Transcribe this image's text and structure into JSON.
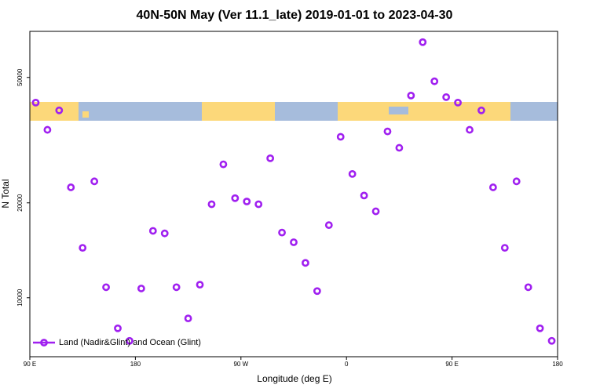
{
  "chart_data": {
    "type": "scatter",
    "title": "40N-50N May (Ver 11.1_late)   2019-01-01 to 2023-04-30",
    "x_label": "Longitude (deg E)",
    "y_label": "N Total",
    "log_y": true,
    "legend": "bottom-left",
    "xlim": [
      90,
      540
    ],
    "ylim": [
      6500,
      70000
    ],
    "xticks": [
      {
        "value": 90,
        "label": "90 E"
      },
      180,
      {
        "value": 270,
        "label": "90 W"
      },
      {
        "value": 360,
        "label": "0"
      },
      {
        "value": 450,
        "label": "90 E"
      },
      {
        "value": 540,
        "label": "180"
      }
    ],
    "yticks": [
      10000,
      20000,
      50000
    ],
    "series": [
      {
        "name": "Land (Nadir&Glint) and Ocean (Glint)",
        "color": "#a020f0",
        "x": [
          95,
          105,
          115,
          125,
          135,
          145,
          155,
          165,
          175,
          185,
          195,
          205,
          215,
          225,
          235,
          245,
          255,
          265,
          275,
          285,
          295,
          305,
          315,
          325,
          335,
          345,
          355,
          365,
          375,
          385,
          395,
          405,
          415,
          425,
          435,
          445,
          455,
          465,
          475,
          485,
          495,
          505,
          515,
          525,
          535
        ],
        "values": [
          41600,
          34100,
          39300,
          22400,
          14400,
          23400,
          10800,
          8000,
          7300,
          10700,
          16300,
          16000,
          10800,
          8600,
          11000,
          19800,
          26500,
          20700,
          20200,
          19800,
          27700,
          16100,
          15000,
          12900,
          10500,
          17000,
          32400,
          24700,
          21100,
          18800,
          33700,
          29900,
          43800,
          64700,
          48600,
          43300,
          41600,
          34100,
          39300,
          22400,
          14400,
          23400,
          10800,
          8000,
          7300
        ]
      }
    ]
  }
}
